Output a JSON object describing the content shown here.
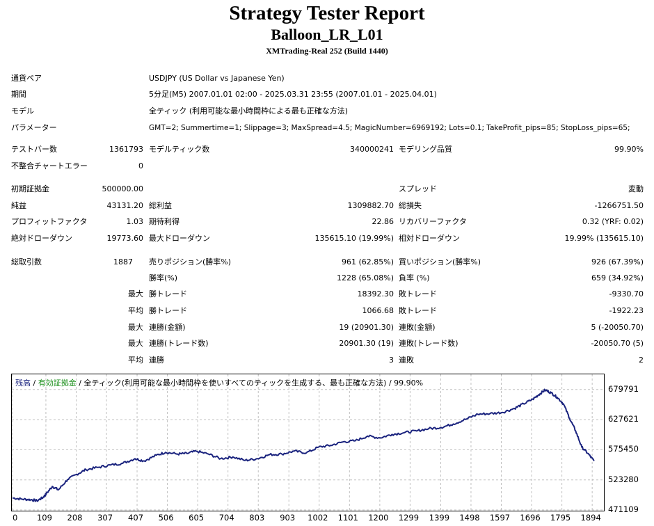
{
  "report": {
    "title": "Strategy Tester Report",
    "ea_name": "Balloon_LR_L01",
    "server": "XMTrading-Real 252 (Build 1440)"
  },
  "settings": {
    "pair_label": "通貨ペア",
    "pair_value": "USDJPY (US Dollar vs Japanese Yen)",
    "period_label": "期間",
    "period_value": "5分足(M5) 2007.01.01 02:00 - 2025.03.31 23:55 (2007.01.01 - 2025.04.01)",
    "model_label": "モデル",
    "model_value": "全ティック (利用可能な最小時間枠による最も正確な方法)",
    "params_label": "パラメーター",
    "params_value": "GMT=2; Summertime=1; Slippage=3; MaxSpread=4.5; MagicNumber=6969192; Lots=0.1; TakeProfit_pips=85; StopLoss_pips=65;"
  },
  "test": {
    "bars_label": "テストバー数",
    "bars_value": "1361793",
    "ticks_label": "モデルティック数",
    "ticks_value": "340000241",
    "quality_label": "モデリング品質",
    "quality_value": "99.90%",
    "errors_label": "不整合チャートエラー",
    "errors_value": "0"
  },
  "results": {
    "deposit_label": "初期証拠金",
    "deposit_value": "500000.00",
    "spread_label": "スプレッド",
    "spread_value": "変動",
    "net_label": "純益",
    "net_value": "43131.20",
    "gross_profit_label": "総利益",
    "gross_profit_value": "1309882.70",
    "gross_loss_label": "総損失",
    "gross_loss_value": "-1266751.50",
    "pf_label": "プロフィットファクタ",
    "pf_value": "1.03",
    "expected_label": "期待利得",
    "expected_value": "22.86",
    "recovery_label": "リカバリーファクタ",
    "recovery_value": "0.32 (YRF: 0.02)",
    "abs_dd_label": "絶対ドローダウン",
    "abs_dd_value": "19773.60",
    "max_dd_label": "最大ドローダウン",
    "max_dd_value": "135615.10 (19.99%)",
    "rel_dd_label": "相対ドローダウン",
    "rel_dd_value": "19.99% (135615.10)"
  },
  "trades": {
    "total_label": "総取引数",
    "total_value": "1887",
    "short_label": "売りポジション(勝率%)",
    "short_value": "961 (62.85%)",
    "long_label": "買いポジション(勝率%)",
    "long_value": "926 (67.39%)",
    "win_rate_label": "勝率(%)",
    "win_rate_value": "1228 (65.08%)",
    "loss_rate_label": "負率 (%)",
    "loss_rate_value": "659 (34.92%)",
    "largest": "最大",
    "average": "平均",
    "win_trade_label": "勝トレード",
    "loss_trade_label": "敗トレード",
    "largest_win_value": "18392.30",
    "largest_loss_value": "-9330.70",
    "avg_win_value": "1066.68",
    "avg_loss_value": "-1922.23",
    "cons_wins_money_label": "連勝(金額)",
    "cons_wins_money_value": "19 (20901.30)",
    "cons_losses_money_label": "連敗(金額)",
    "cons_losses_money_value": "5 (-20050.70)",
    "cons_wins_count_label": "連勝(トレード数)",
    "cons_wins_count_value": "20901.30 (19)",
    "cons_losses_count_label": "連敗(トレード数)",
    "cons_losses_count_value": "-20050.70 (5)",
    "avg_cons_wins_label": "連勝",
    "avg_cons_wins_value": "3",
    "avg_cons_losses_label": "連敗",
    "avg_cons_losses_value": "2"
  },
  "chart_legend": {
    "balance": "残高",
    "sep1": " / ",
    "equity": "有効証拠金",
    "sep2": " / ",
    "rest": "全ティック(利用可能な最小時間枠を使いすべてのティックを生成する、最も正確な方法) / 99.90%"
  },
  "colors": {
    "balance_line": "#1a237e",
    "grid": "#c0c0c0"
  },
  "chart_data": {
    "type": "line",
    "title": "",
    "xlabel": "",
    "ylabel": "",
    "grid": true,
    "ylim": [
      471109,
      700000
    ],
    "xlim": [
      0,
      1930
    ],
    "x_ticks": [
      0,
      109,
      208,
      307,
      407,
      506,
      605,
      704,
      803,
      903,
      1002,
      1101,
      1200,
      1299,
      1399,
      1498,
      1597,
      1696,
      1795,
      1894
    ],
    "y_ticks": [
      471109,
      523280,
      575450,
      627621,
      679791
    ],
    "series": [
      {
        "name": "残高",
        "x": [
          0,
          30,
          60,
          80,
          100,
          110,
          130,
          150,
          180,
          210,
          240,
          280,
          320,
          360,
          400,
          430,
          470,
          500,
          540,
          570,
          600,
          640,
          680,
          720,
          760,
          800,
          840,
          880,
          920,
          960,
          1000,
          1040,
          1080,
          1120,
          1160,
          1200,
          1240,
          1280,
          1320,
          1360,
          1400,
          1440,
          1480,
          1520,
          1560,
          1600,
          1640,
          1670,
          1700,
          1720,
          1740,
          1760,
          1780,
          1800,
          1820,
          1840,
          1860,
          1880,
          1900
        ],
        "values": [
          492000,
          490000,
          489000,
          487000,
          493000,
          499000,
          512000,
          506000,
          524000,
          533000,
          541000,
          545000,
          549000,
          552000,
          560000,
          556000,
          566000,
          571000,
          568000,
          569000,
          573000,
          568000,
          560000,
          563000,
          557000,
          560000,
          567000,
          568000,
          573000,
          570000,
          580000,
          583000,
          589000,
          591000,
          599000,
          596000,
          602000,
          605000,
          608000,
          612000,
          614000,
          620000,
          628000,
          637000,
          638000,
          640000,
          647000,
          655000,
          663000,
          671000,
          679000,
          674000,
          666000,
          655000,
          630000,
          608000,
          580000,
          569000,
          556000
        ]
      }
    ]
  }
}
